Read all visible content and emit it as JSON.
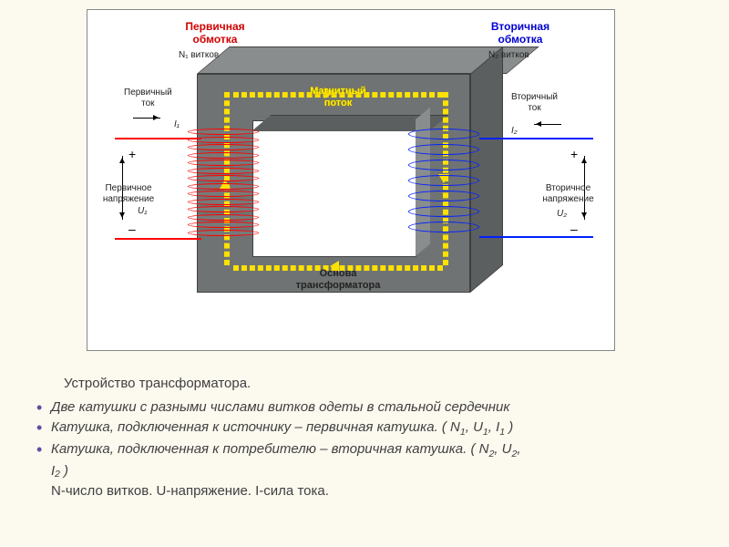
{
  "diagram": {
    "primary": {
      "title": "Первичная\nобмотка",
      "turns": "N₁ витков",
      "current_label": "Первичный\nток",
      "current_symbol": "I₁",
      "voltage_label": "Первичное\nнапряжение",
      "voltage_symbol": "U₁",
      "color": "#ff0000",
      "turns_drawn": 14
    },
    "secondary": {
      "title": "Вторичная\nобмотка",
      "turns": "N₂ витков",
      "current_label": "Вторичный\nток",
      "current_symbol": "I₂",
      "voltage_label": "Вторичное\nнапряжение",
      "voltage_symbol": "U₂",
      "color": "#0020ff",
      "turns_drawn": 7
    },
    "flux_label": "Магнитный\nпоток",
    "core_label": "Основа\nтрансформатора",
    "colors": {
      "core_front": "#707373",
      "core_top": "#8a8d8d",
      "core_side": "#5c5f5f",
      "flux": "#ffe100",
      "bg": "#fcf9ef"
    }
  },
  "description": {
    "title": "Устройство трансформатора.",
    "b1": "Две катушки с разными числами витков одеты в стальной сердечник",
    "b2_a": "Катушка, подключенная к источнику – первичная катушка. ( N",
    "b2_b": ", U",
    "b2_c": ", I",
    "b2_d": " )",
    "b3_a": "Катушка, подключенная к потребителю – вторичная катушка. ( N",
    "b3_b": ", U",
    "b3_c": ",",
    "b3_d": " )",
    "b3_line2": "I₂",
    "line4": "N-число витков. U-напряжение.   I-сила тока."
  }
}
